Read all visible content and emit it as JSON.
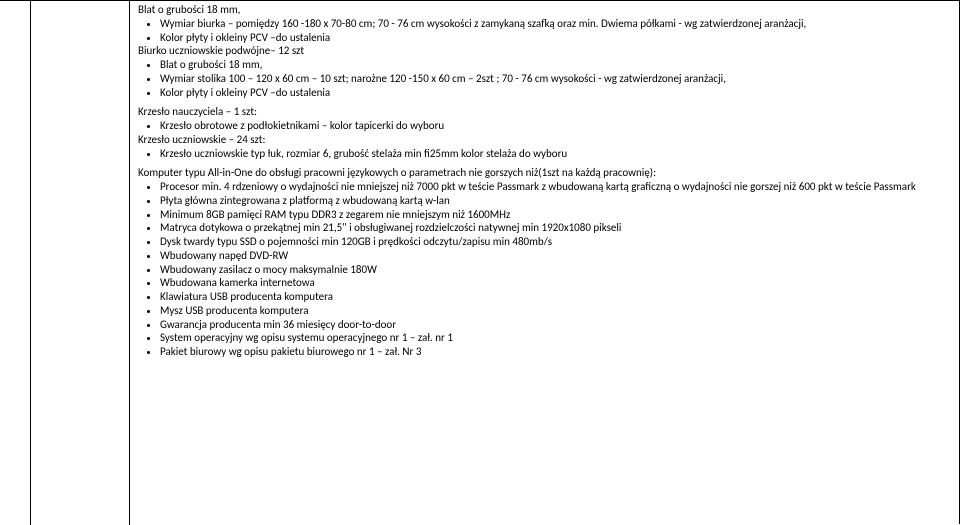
{
  "body": {
    "l1": "Blat o grubości 18 mm,",
    "b1": "Wymiar biurka – pomiędzy 160 -180 x 70-80 cm; 70 - 76 cm wysokości z zamykaną szafką oraz min. Dwiema półkami - wg zatwierdzonej aranżacji,",
    "b2": "Kolor płyty i okleiny PCV –do ustalenia",
    "l2": "Biurko uczniowskie podwójne– 12 szt",
    "b3": "Blat o grubości 18 mm,",
    "b4": "Wymiar stolika 100 – 120 x 60 cm – 10 szt; narożne 120 -150 x 60 cm – 2szt ; 70 - 76 cm wysokości - wg zatwierdzonej aranżacji,",
    "b5": "Kolor płyty i okleiny PCV –do ustalenia",
    "l3": "Krzesło nauczyciela – 1 szt:",
    "b6": "Krzesło obrotowe z podłokietnikami – kolor tapicerki do wyboru",
    "l4": "Krzesło uczniowskie – 24 szt:",
    "b7": "Krzesło uczniowskie typ łuk, rozmiar 6, grubość stelaża min fi25mm kolor stelaża do wyboru",
    "l5": "Komputer typu All-in-One do obsługi pracowni językowych o parametrach nie gorszych niż(1szt na każdą pracownię):",
    "c1": "Procesor min. 4 rdzeniowy o wydajności nie mniejszej niż 7000 pkt w teście Passmark z wbudowaną kartą graficzną o wydajności nie gorszej niż 600 pkt w teście Passmark",
    "c2": "Płyta główna zintegrowana z platformą z wbudowaną kartą w-lan",
    "c3": "Minimum 8GB pamięci RAM typu DDR3 z zegarem nie mniejszym niż 1600MHz",
    "c4": "Matryca dotykowa o przekątnej min 21,5\" i obsługiwanej rozdzielczości natywnej min 1920x1080 pikseli",
    "c5": "Dysk twardy  typu SSD o pojemności min 120GB i prędkości odczytu/zapisu min 480mb/s",
    "c6": "Wbudowany napęd DVD-RW",
    "c7": "Wbudowany zasilacz o mocy maksymalnie 180W",
    "c8": "Wbudowana kamerka internetowa",
    "c9": "Klawiatura USB producenta komputera",
    "c10": "Mysz USB producenta komputera",
    "c11": "Gwarancja producenta min 36 miesięcy door-to-door",
    "c12": "System operacyjny wg opisu systemu operacyjnego nr 1 – zał. nr 1",
    "c13": "Pakiet biurowy wg opisu pakietu biurowego nr 1 – zał. Nr 3"
  }
}
